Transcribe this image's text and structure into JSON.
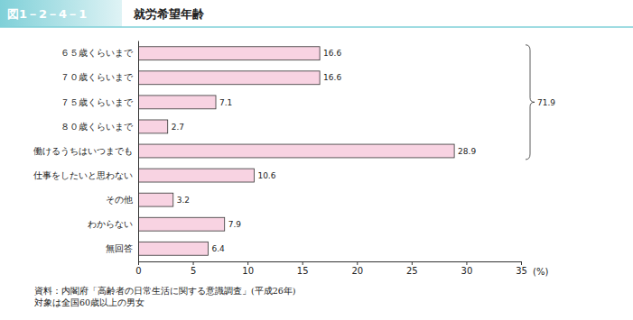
{
  "chart_data": {
    "type": "bar",
    "orientation": "horizontal",
    "figure_label": "図1－2－4－1",
    "title": "就労希望年齢",
    "categories": [
      "６５歳くらいまで",
      "７０歳くらいまで",
      "７５歳くらいまで",
      "８０歳くらいまで",
      "働けるうちはいつまでも",
      "仕事をしたいと思わない",
      "その他",
      "わからない",
      "無回答"
    ],
    "values": [
      16.6,
      16.6,
      7.1,
      2.7,
      28.9,
      10.6,
      3.2,
      7.9,
      6.4
    ],
    "color": "#f8d3e2",
    "xlim": [
      0,
      35
    ],
    "xticks": [
      0,
      5,
      10,
      15,
      20,
      25,
      30,
      35
    ],
    "xlabel": "(%)",
    "grid": false,
    "data_labels": true,
    "annotations": [
      {
        "text": "71.9",
        "span": [
          "６５歳くらいまで",
          "働けるうちはいつまでも"
        ]
      }
    ],
    "notes": [
      "資料：内閣府「高齢者の日常生活に関する意識調査」(平成26年)",
      "対象は全国60歳以上の男女"
    ]
  }
}
